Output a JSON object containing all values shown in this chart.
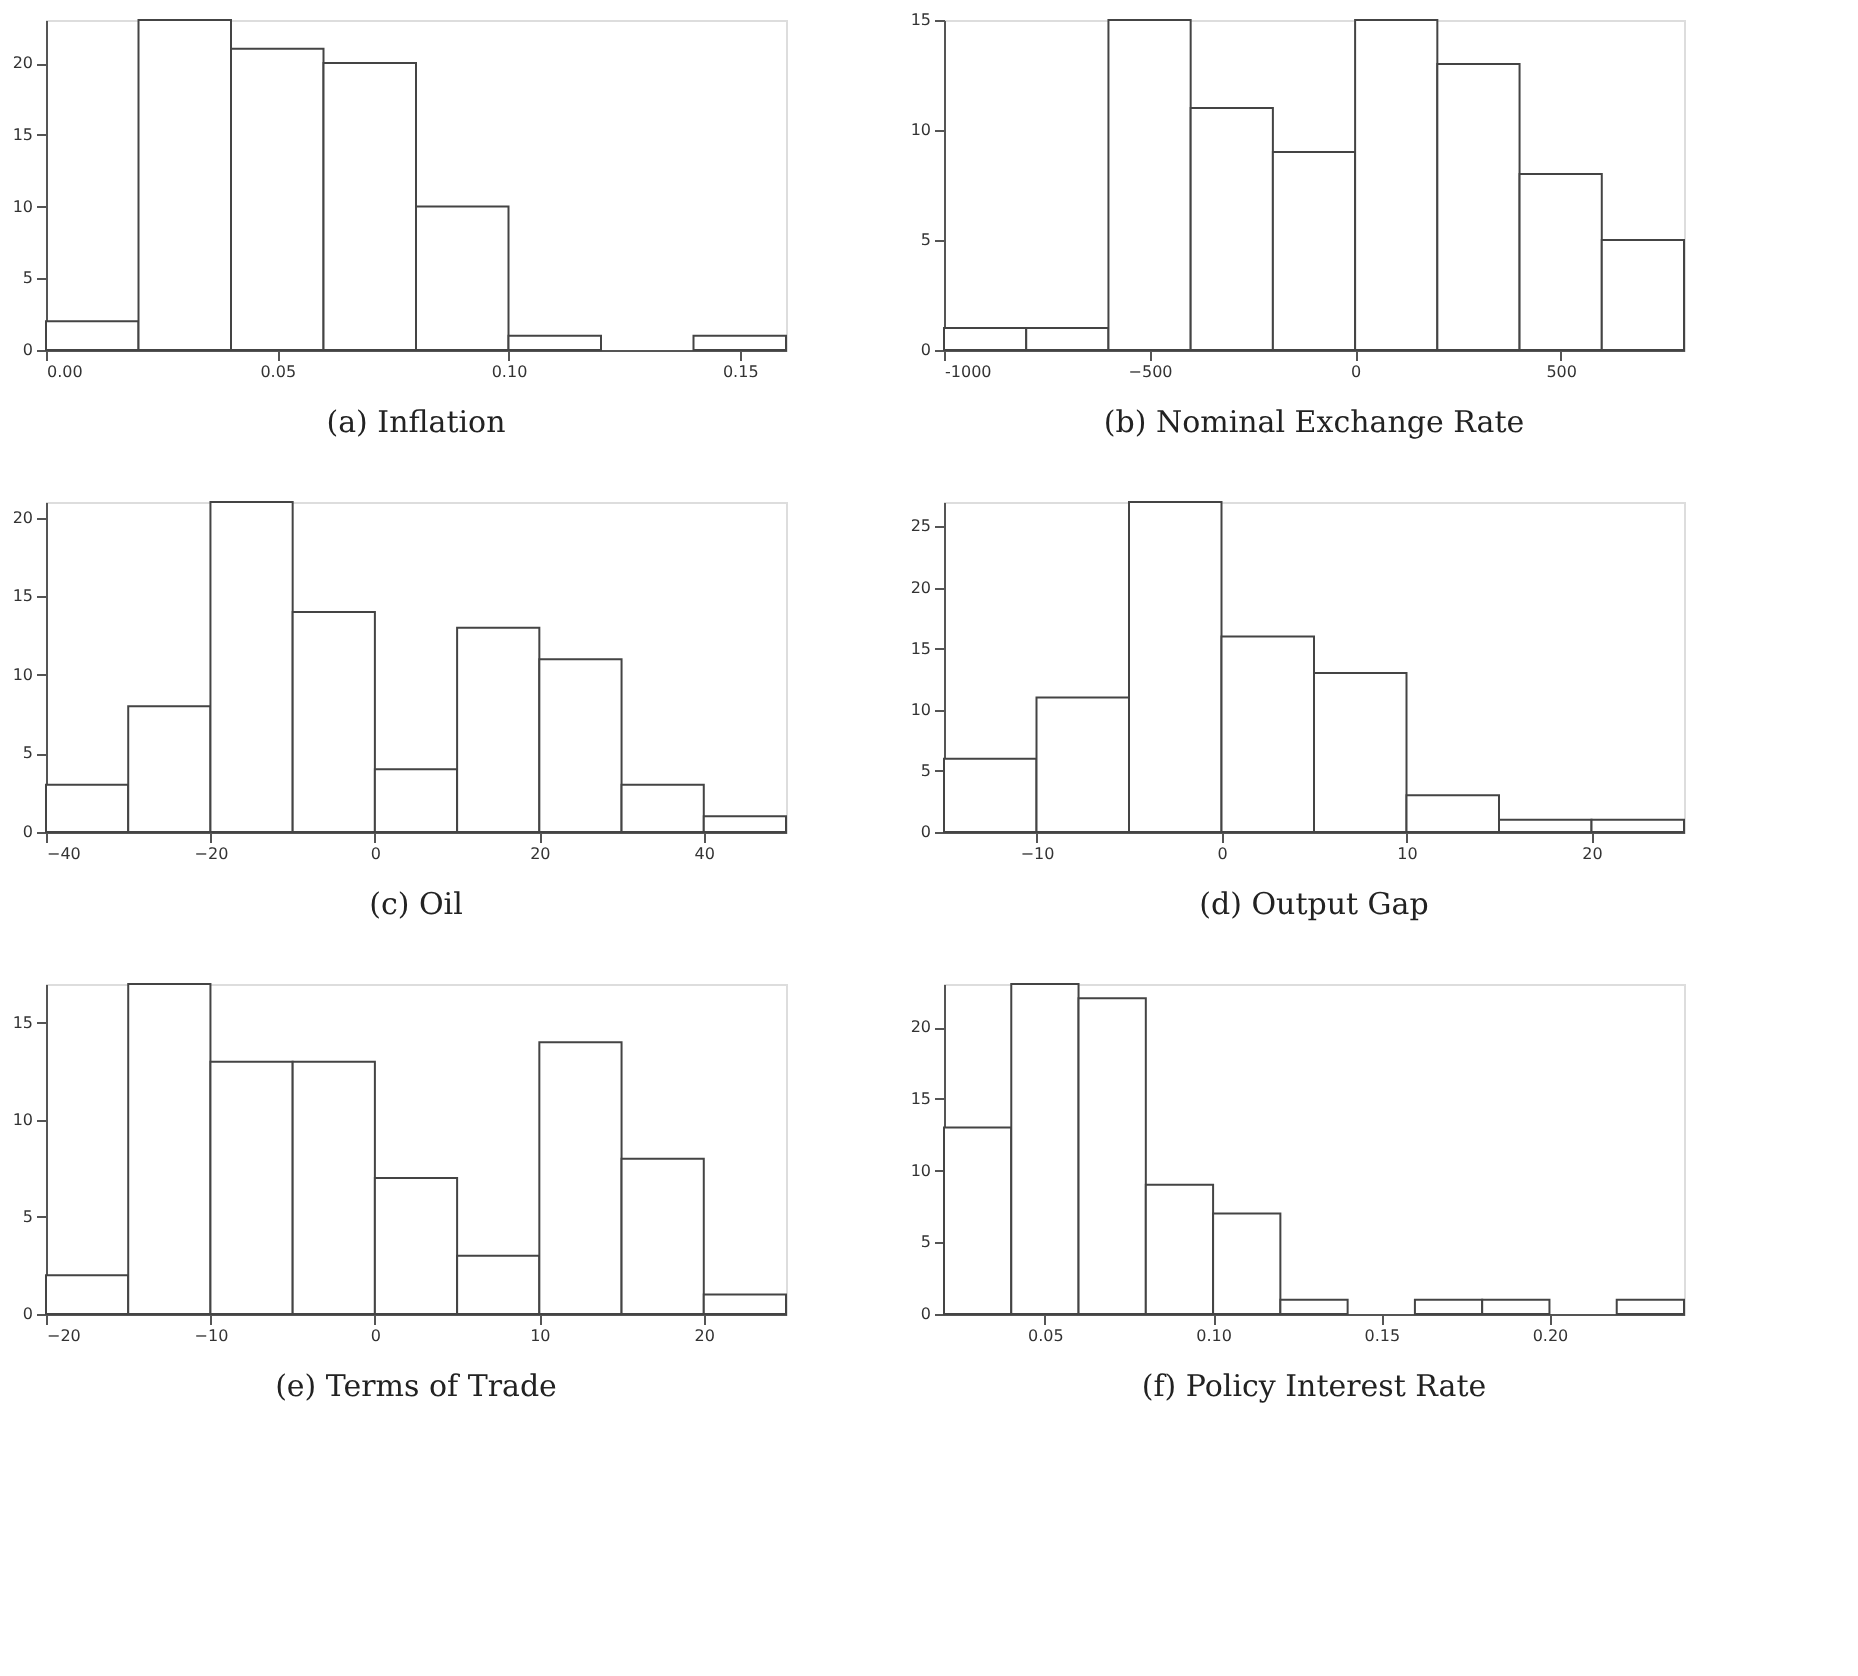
{
  "chart_data": [
    {
      "type": "histogram",
      "title": "(a) Inflation",
      "bins": [
        0,
        0.02,
        0.04,
        0.06,
        0.08,
        0.1,
        0.12,
        0.14,
        0.16
      ],
      "values": [
        2,
        23,
        21,
        20,
        10,
        1,
        0,
        1
      ],
      "color": "#ffffff",
      "xlim": [
        0,
        0.16
      ],
      "xticks": [
        {
          "value": 0,
          "label": "0.00"
        },
        {
          "value": 0.05,
          "label": "0.05"
        },
        {
          "value": 0.1,
          "label": "0.10"
        },
        {
          "value": 0.15,
          "label": "0.15"
        }
      ],
      "ylim": [
        0,
        23
      ],
      "yticks": [
        0,
        5,
        10,
        15,
        20
      ],
      "grid": false
    },
    {
      "type": "histogram",
      "title": "(b) Nominal Exchange Rate",
      "bins": [
        -1000,
        -800,
        -600,
        -400,
        -200,
        0,
        200,
        400,
        600,
        800
      ],
      "values": [
        1,
        1,
        15,
        11,
        9,
        15,
        13,
        8,
        5
      ],
      "color": "#ffffff",
      "xlim": [
        -1000,
        800
      ],
      "xticks": [
        {
          "value": -1000,
          "label": "-1000"
        },
        -500,
        0,
        500
      ],
      "ylim": [
        0,
        15
      ],
      "yticks": [
        0,
        5,
        10,
        15
      ],
      "grid": false
    },
    {
      "type": "histogram",
      "title": "(c) Oil",
      "bins": [
        -40,
        -30,
        -20,
        -10,
        0,
        10,
        20,
        30,
        40,
        50
      ],
      "values": [
        3,
        8,
        21,
        14,
        4,
        13,
        11,
        3,
        1
      ],
      "color": "#ffffff",
      "xlim": [
        -40,
        50
      ],
      "xticks": [
        -40,
        -20,
        0,
        20,
        40
      ],
      "ylim": [
        0,
        21
      ],
      "yticks": [
        0,
        5,
        10,
        15,
        20
      ],
      "grid": false
    },
    {
      "type": "histogram",
      "title": "(d) Output Gap",
      "bins": [
        -15,
        -10,
        -5,
        0,
        5,
        10,
        15,
        20,
        25
      ],
      "values": [
        6,
        11,
        27,
        16,
        13,
        3,
        1,
        1
      ],
      "color": "#ffffff",
      "xlim": [
        -15,
        25
      ],
      "xticks": [
        -10,
        0,
        10,
        20
      ],
      "ylim": [
        0,
        27
      ],
      "yticks": [
        0,
        5,
        10,
        15,
        20,
        25
      ],
      "grid": false
    },
    {
      "type": "histogram",
      "title": "(e) Terms of Trade",
      "bins": [
        -20,
        -15,
        -10,
        -5,
        0,
        5,
        10,
        15,
        20,
        25
      ],
      "values": [
        2,
        17,
        13,
        13,
        7,
        3,
        14,
        8,
        1
      ],
      "color": "#ffffff",
      "xlim": [
        -20,
        25
      ],
      "xticks": [
        -20,
        -10,
        0,
        10,
        20
      ],
      "ylim": [
        0,
        17
      ],
      "yticks": [
        0,
        5,
        10,
        15
      ],
      "grid": false
    },
    {
      "type": "histogram",
      "title": "(f) Policy Interest Rate",
      "bins": [
        0.02,
        0.04,
        0.06,
        0.08,
        0.1,
        0.12,
        0.14,
        0.16,
        0.18,
        0.2,
        0.22,
        0.24
      ],
      "values": [
        13,
        23,
        22,
        9,
        7,
        1,
        0,
        1,
        1,
        0,
        1
      ],
      "color": "#ffffff",
      "xlim": [
        0.02,
        0.24
      ],
      "xticks": [
        0.05,
        {
          "value": 0.1,
          "label": "0.10"
        },
        0.15,
        {
          "value": 0.2,
          "label": "0.20"
        }
      ],
      "ylim": [
        0,
        23
      ],
      "yticks": [
        0,
        5,
        10,
        15,
        20
      ],
      "grid": false
    }
  ]
}
